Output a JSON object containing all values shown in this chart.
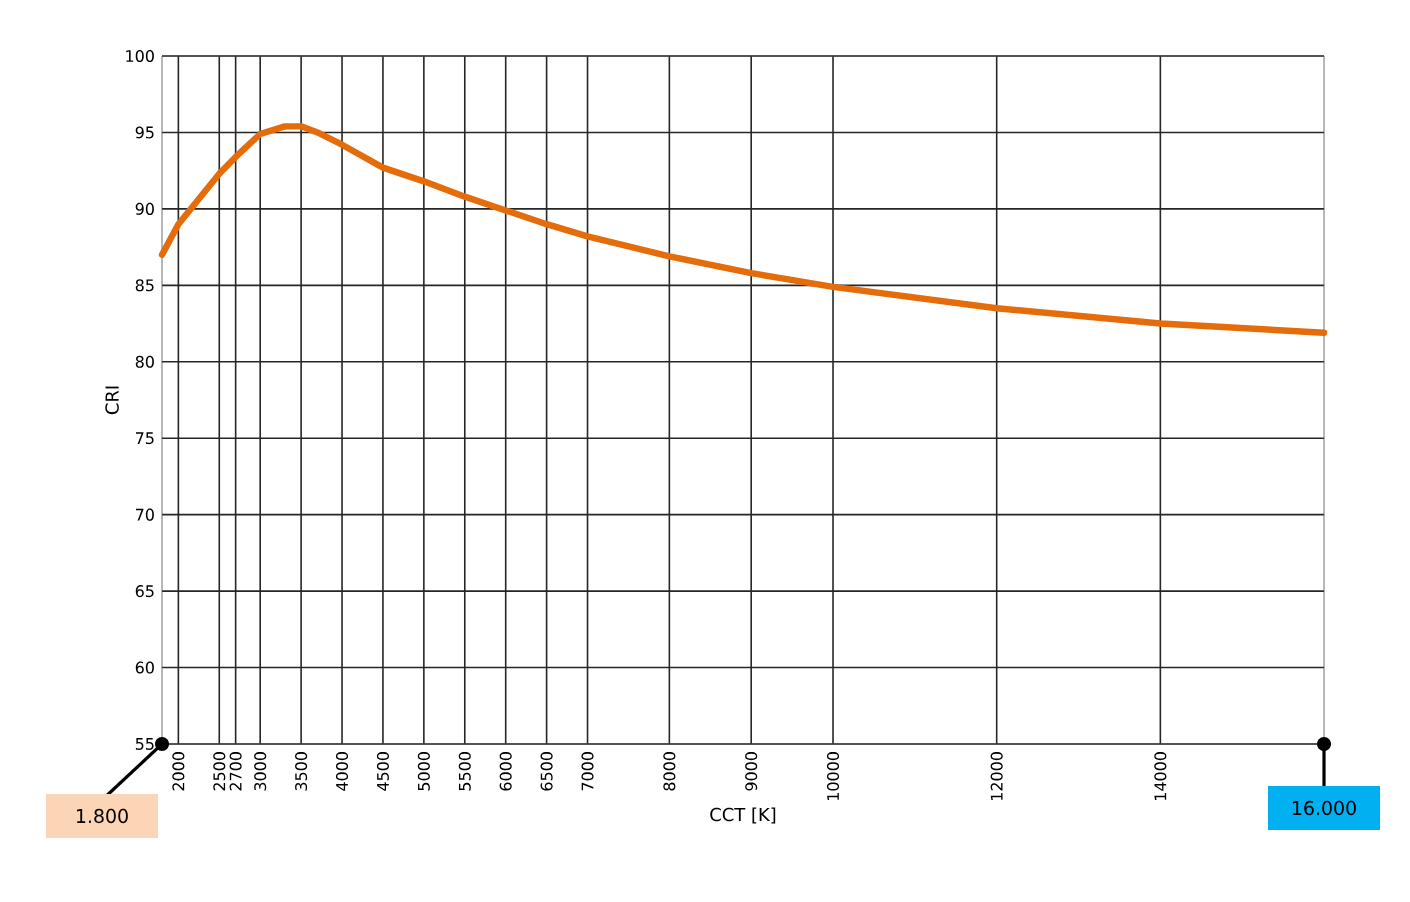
{
  "chart_data": {
    "type": "line",
    "xlabel": "CCT  [K]",
    "ylabel": "CRI",
    "x": [
      1800,
      2000,
      2500,
      2700,
      3000,
      3300,
      3500,
      3700,
      4000,
      4500,
      5000,
      5500,
      6000,
      6500,
      7000,
      8000,
      9000,
      10000,
      12000,
      14000,
      16000
    ],
    "series": [
      {
        "color": "#e46c0a",
        "values": [
          87.0,
          89.0,
          92.3,
          93.4,
          94.9,
          95.4,
          95.4,
          95.0,
          94.2,
          92.7,
          91.8,
          90.8,
          89.9,
          89.0,
          88.2,
          86.9,
          85.8,
          84.9,
          83.5,
          82.5,
          81.9
        ]
      }
    ],
    "xlim": [
      1800,
      16000
    ],
    "ylim": [
      55,
      100
    ],
    "xticks": [
      2000,
      2500,
      2700,
      3000,
      3500,
      4000,
      4500,
      5000,
      5500,
      6000,
      6500,
      7000,
      8000,
      9000,
      10000,
      12000,
      14000
    ],
    "yticks": [
      55,
      60,
      65,
      70,
      75,
      80,
      85,
      90,
      95,
      100
    ],
    "grid": true,
    "marker": "none",
    "line_style": "solid",
    "annotations": [
      {
        "text": "1.800",
        "x": 1800,
        "y": 55
      },
      {
        "text": "16.000",
        "x": 16000,
        "y": 55
      }
    ]
  }
}
